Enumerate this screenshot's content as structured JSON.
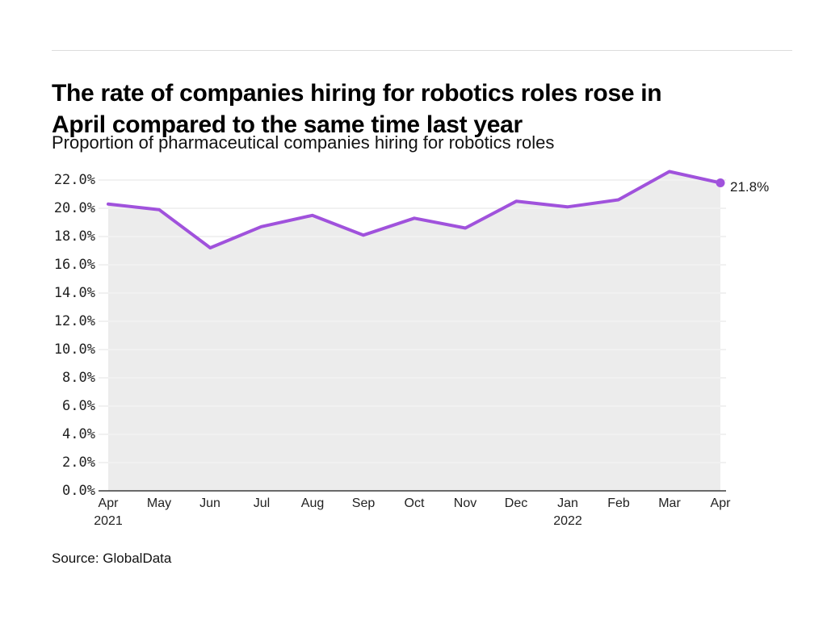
{
  "header": {
    "title_line1": "The rate of companies hiring for robotics roles rose in",
    "title_line2": "April compared to the same time last year",
    "subtitle": "Proportion of pharmaceutical companies hiring for robotics roles"
  },
  "source": "Source: GlobalData",
  "chart_data": {
    "type": "area",
    "title": "The rate of companies hiring for robotics roles rose in April compared to the same time last year",
    "subtitle": "Proportion of pharmaceutical companies hiring for robotics roles",
    "source": "Source: GlobalData",
    "categories": [
      "Apr 2021",
      "May 2021",
      "Jun 2021",
      "Jul 2021",
      "Aug 2021",
      "Sep 2021",
      "Oct 2021",
      "Nov 2021",
      "Dec 2021",
      "Jan 2022",
      "Feb 2022",
      "Mar 2022",
      "Apr 2022"
    ],
    "x_tick_labels": [
      "Apr",
      "May",
      "Jun",
      "Jul",
      "Aug",
      "Sep",
      "Oct",
      "Nov",
      "Dec",
      "Jan",
      "Feb",
      "Mar",
      "Apr"
    ],
    "year_labels": [
      {
        "index": 0,
        "label": "2021"
      },
      {
        "index": 9,
        "label": "2022"
      }
    ],
    "series": [
      {
        "name": "Proportion of pharmaceutical companies hiring for robotics roles",
        "values": [
          20.3,
          19.9,
          17.2,
          18.7,
          19.5,
          18.1,
          19.3,
          18.6,
          20.5,
          20.1,
          20.6,
          22.6,
          21.8
        ]
      }
    ],
    "unit": "%",
    "end_label": "21.8%",
    "y_ticks": [
      "0.0%",
      "2.0%",
      "4.0%",
      "6.0%",
      "8.0%",
      "10.0%",
      "12.0%",
      "14.0%",
      "16.0%",
      "18.0%",
      "20.0%",
      "22.0%"
    ],
    "y_tick_step": 2,
    "ylim": [
      0,
      23.6
    ],
    "grid": true,
    "legend": "none",
    "colors": {
      "line": "#a052dc",
      "area_fill": "#ececec",
      "gridline": "#e3e3e3",
      "gridline_over_area": "#f6f6f6",
      "axis": "#3b3b3b",
      "text": "#1a1a1a"
    }
  }
}
